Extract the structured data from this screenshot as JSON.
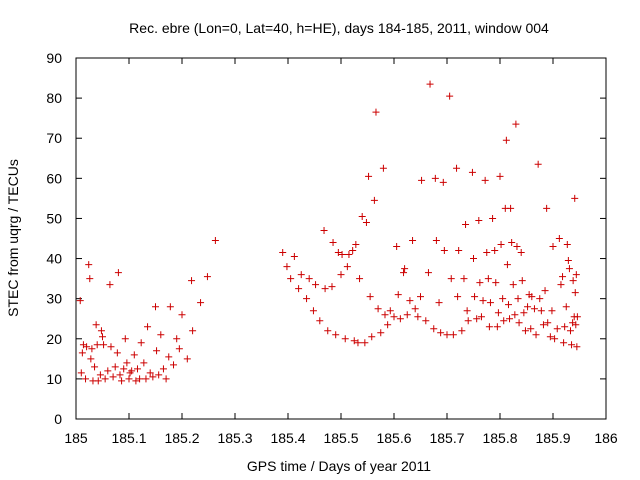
{
  "chart_data": {
    "type": "scatter",
    "title": "Rec. ebre (Lon=0, Lat=40, h=HE), days 184-185, 2011, window 004",
    "xlabel": "GPS time / Days of year 2011",
    "ylabel": "STEC from uqrg / TECUs",
    "xlim": [
      185,
      186
    ],
    "ylim": [
      0,
      90
    ],
    "x_ticks": [
      "185",
      "185.1",
      "185.2",
      "185.3",
      "185.4",
      "185.5",
      "185.6",
      "185.7",
      "185.8",
      "185.9",
      "186"
    ],
    "y_ticks": [
      "0",
      "10",
      "20",
      "30",
      "40",
      "50",
      "60",
      "70",
      "80",
      "90"
    ],
    "grid": false,
    "marker": "plus",
    "series": [
      {
        "color": "#cc0000",
        "points": [
          [
            185.008,
            29.5
          ],
          [
            185.01,
            11.5
          ],
          [
            185.012,
            16.5
          ],
          [
            185.014,
            18.5
          ],
          [
            185.018,
            10.0
          ],
          [
            185.02,
            18.0
          ],
          [
            185.024,
            38.5
          ],
          [
            185.026,
            35.0
          ],
          [
            185.028,
            15.0
          ],
          [
            185.03,
            17.5
          ],
          [
            185.032,
            9.5
          ],
          [
            185.035,
            13.0
          ],
          [
            185.038,
            23.5
          ],
          [
            185.04,
            18.5
          ],
          [
            185.042,
            9.5
          ],
          [
            185.046,
            11.0
          ],
          [
            185.048,
            22.0
          ],
          [
            185.05,
            20.5
          ],
          [
            185.052,
            18.5
          ],
          [
            185.055,
            10.0
          ],
          [
            185.06,
            12.0
          ],
          [
            185.064,
            33.5
          ],
          [
            185.066,
            18.0
          ],
          [
            185.07,
            10.5
          ],
          [
            185.074,
            13.0
          ],
          [
            185.078,
            16.5
          ],
          [
            185.08,
            36.5
          ],
          [
            185.083,
            11.0
          ],
          [
            185.086,
            9.5
          ],
          [
            185.09,
            12.5
          ],
          [
            185.093,
            20.0
          ],
          [
            185.096,
            14.0
          ],
          [
            185.1,
            10.0
          ],
          [
            185.102,
            11.5
          ],
          [
            185.105,
            12.0
          ],
          [
            185.11,
            16.0
          ],
          [
            185.113,
            9.5
          ],
          [
            185.116,
            12.5
          ],
          [
            185.12,
            10.0
          ],
          [
            185.123,
            19.0
          ],
          [
            185.128,
            14.0
          ],
          [
            185.132,
            10.0
          ],
          [
            185.135,
            23.0
          ],
          [
            185.14,
            11.5
          ],
          [
            185.145,
            10.5
          ],
          [
            185.15,
            28.0
          ],
          [
            185.152,
            17.0
          ],
          [
            185.156,
            11.0
          ],
          [
            185.16,
            21.0
          ],
          [
            185.165,
            12.5
          ],
          [
            185.17,
            10.0
          ],
          [
            185.175,
            15.5
          ],
          [
            185.178,
            28.0
          ],
          [
            185.184,
            13.5
          ],
          [
            185.19,
            20.0
          ],
          [
            185.195,
            17.5
          ],
          [
            185.2,
            26.0
          ],
          [
            185.21,
            15.0
          ],
          [
            185.218,
            34.5
          ],
          [
            185.22,
            22.0
          ],
          [
            185.235,
            29.0
          ],
          [
            185.248,
            35.5
          ],
          [
            185.263,
            44.5
          ],
          [
            185.39,
            41.5
          ],
          [
            185.398,
            38.0
          ],
          [
            185.405,
            35.0
          ],
          [
            185.412,
            40.5
          ],
          [
            185.42,
            32.5
          ],
          [
            185.425,
            36.0
          ],
          [
            185.435,
            30.0
          ],
          [
            185.44,
            35.0
          ],
          [
            185.448,
            27.0
          ],
          [
            185.452,
            33.5
          ],
          [
            185.46,
            24.5
          ],
          [
            185.468,
            47.0
          ],
          [
            185.47,
            32.5
          ],
          [
            185.475,
            22.0
          ],
          [
            185.483,
            33.0
          ],
          [
            185.485,
            44.0
          ],
          [
            185.49,
            21.0
          ],
          [
            185.495,
            41.5
          ],
          [
            185.5,
            36.0
          ],
          [
            185.502,
            41.0
          ],
          [
            185.508,
            20.0
          ],
          [
            185.512,
            38.0
          ],
          [
            185.515,
            41.0
          ],
          [
            185.522,
            42.0
          ],
          [
            185.525,
            19.5
          ],
          [
            185.528,
            43.5
          ],
          [
            185.532,
            19.0
          ],
          [
            185.535,
            35.0
          ],
          [
            185.54,
            50.5
          ],
          [
            185.545,
            19.0
          ],
          [
            185.548,
            49.0
          ],
          [
            185.552,
            60.5
          ],
          [
            185.555,
            30.5
          ],
          [
            185.558,
            20.5
          ],
          [
            185.563,
            54.5
          ],
          [
            185.566,
            76.5
          ],
          [
            185.57,
            27.5
          ],
          [
            185.575,
            21.5
          ],
          [
            185.58,
            62.5
          ],
          [
            185.583,
            26.0
          ],
          [
            185.588,
            23.5
          ],
          [
            185.593,
            27.0
          ],
          [
            185.6,
            25.5
          ],
          [
            185.605,
            43.0
          ],
          [
            185.608,
            31.0
          ],
          [
            185.612,
            25.0
          ],
          [
            185.618,
            36.5
          ],
          [
            185.62,
            37.5
          ],
          [
            185.625,
            26.0
          ],
          [
            185.63,
            29.5
          ],
          [
            185.635,
            44.5
          ],
          [
            185.64,
            27.5
          ],
          [
            185.645,
            25.5
          ],
          [
            185.65,
            30.5
          ],
          [
            185.652,
            59.5
          ],
          [
            185.66,
            24.5
          ],
          [
            185.665,
            36.5
          ],
          [
            185.668,
            83.5
          ],
          [
            185.675,
            22.5
          ],
          [
            185.678,
            60.0
          ],
          [
            185.68,
            44.5
          ],
          [
            185.685,
            29.0
          ],
          [
            185.688,
            21.5
          ],
          [
            185.693,
            59.0
          ],
          [
            185.695,
            42.0
          ],
          [
            185.7,
            21.0
          ],
          [
            185.705,
            80.5
          ],
          [
            185.708,
            35.0
          ],
          [
            185.712,
            21.0
          ],
          [
            185.718,
            62.5
          ],
          [
            185.72,
            30.5
          ],
          [
            185.722,
            42.0
          ],
          [
            185.728,
            22.0
          ],
          [
            185.732,
            35.0
          ],
          [
            185.735,
            48.5
          ],
          [
            185.738,
            27.0
          ],
          [
            185.74,
            24.5
          ],
          [
            185.748,
            61.5
          ],
          [
            185.75,
            40.0
          ],
          [
            185.752,
            30.5
          ],
          [
            185.756,
            25.0
          ],
          [
            185.76,
            49.5
          ],
          [
            185.762,
            34.0
          ],
          [
            185.765,
            25.5
          ],
          [
            185.768,
            29.5
          ],
          [
            185.772,
            59.5
          ],
          [
            185.775,
            41.5
          ],
          [
            185.778,
            35.0
          ],
          [
            185.78,
            23.0
          ],
          [
            185.782,
            29.0
          ],
          [
            185.786,
            50.0
          ],
          [
            185.79,
            42.0
          ],
          [
            185.792,
            34.0
          ],
          [
            185.795,
            23.0
          ],
          [
            185.797,
            26.5
          ],
          [
            185.8,
            60.5
          ],
          [
            185.802,
            43.5
          ],
          [
            185.805,
            30.0
          ],
          [
            185.807,
            24.5
          ],
          [
            185.81,
            52.5
          ],
          [
            185.812,
            69.5
          ],
          [
            185.814,
            38.5
          ],
          [
            185.816,
            28.5
          ],
          [
            185.818,
            25.0
          ],
          [
            185.82,
            52.5
          ],
          [
            185.822,
            44.0
          ],
          [
            185.825,
            33.5
          ],
          [
            185.828,
            26.0
          ],
          [
            185.83,
            73.5
          ],
          [
            185.832,
            43.0
          ],
          [
            185.834,
            30.0
          ],
          [
            185.836,
            24.0
          ],
          [
            185.84,
            41.5
          ],
          [
            185.842,
            34.5
          ],
          [
            185.845,
            26.5
          ],
          [
            185.848,
            22.0
          ],
          [
            185.852,
            28.0
          ],
          [
            185.855,
            31.0
          ],
          [
            185.858,
            22.5
          ],
          [
            185.86,
            30.5
          ],
          [
            185.865,
            27.5
          ],
          [
            185.868,
            21.0
          ],
          [
            185.872,
            63.5
          ],
          [
            185.875,
            30.0
          ],
          [
            185.878,
            27.0
          ],
          [
            185.882,
            23.5
          ],
          [
            185.885,
            32.0
          ],
          [
            185.888,
            52.5
          ],
          [
            185.89,
            24.0
          ],
          [
            185.895,
            20.5
          ],
          [
            185.898,
            27.0
          ],
          [
            185.9,
            43.0
          ],
          [
            185.903,
            20.0
          ],
          [
            185.908,
            22.5
          ],
          [
            185.912,
            45.0
          ],
          [
            185.915,
            33.5
          ],
          [
            185.918,
            35.5
          ],
          [
            185.92,
            19.0
          ],
          [
            185.922,
            23.0
          ],
          [
            185.925,
            28.0
          ],
          [
            185.927,
            43.5
          ],
          [
            185.929,
            39.5
          ],
          [
            185.931,
            37.5
          ],
          [
            185.933,
            22.0
          ],
          [
            185.935,
            18.5
          ],
          [
            185.937,
            24.0
          ],
          [
            185.938,
            34.5
          ],
          [
            185.94,
            25.5
          ],
          [
            185.941,
            55.0
          ],
          [
            185.942,
            31.5
          ],
          [
            185.943,
            23.5
          ],
          [
            185.944,
            36.0
          ],
          [
            185.945,
            18.0
          ],
          [
            185.946,
            25.5
          ]
        ]
      }
    ]
  }
}
